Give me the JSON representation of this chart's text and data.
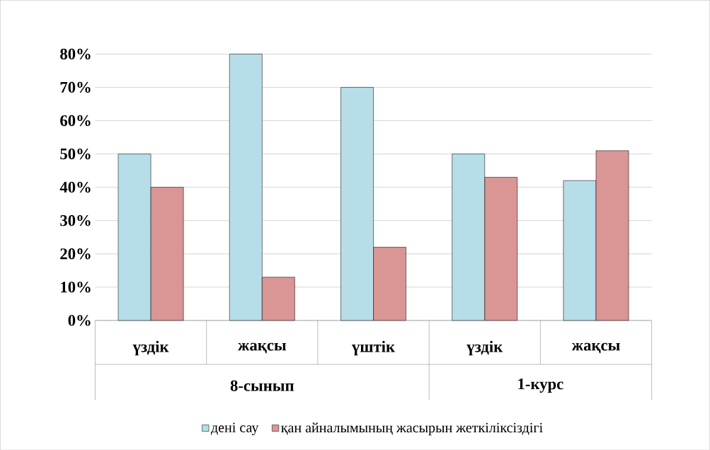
{
  "chart_data": {
    "type": "bar",
    "categories": [
      "үздік",
      "жақсы",
      "үштік",
      "үздік",
      "жақсы"
    ],
    "series": [
      {
        "name": "дені сау",
        "color": "#b7dee8",
        "values": [
          50,
          80,
          70,
          50,
          42
        ]
      },
      {
        "name": "қан айналымының жасырын жеткіліксіздігі",
        "color": "#d99694",
        "values": [
          40,
          13,
          22,
          43,
          51
        ]
      }
    ],
    "annotations": [
      "8-сынып",
      "1-курс"
    ],
    "ylim": [
      0,
      80
    ],
    "yticks": [
      {
        "value": 0,
        "label": "0%"
      },
      {
        "value": 10,
        "label": "10%"
      },
      {
        "value": 20,
        "label": "20%"
      },
      {
        "value": 30,
        "label": "30%"
      },
      {
        "value": 40,
        "label": "40%"
      },
      {
        "value": 50,
        "label": "50%"
      },
      {
        "value": 60,
        "label": "60%"
      },
      {
        "value": 70,
        "label": "70%"
      },
      {
        "value": 80,
        "label": "80%"
      }
    ],
    "grid": "y",
    "legend": "bottom"
  }
}
